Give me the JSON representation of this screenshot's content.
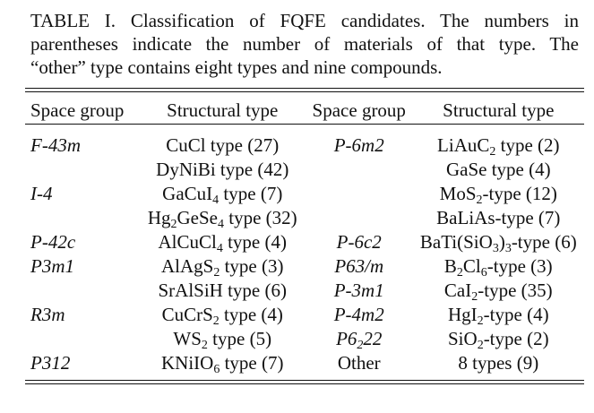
{
  "caption": {
    "line1": "TABLE I.   Classification of FQFE candidates. The numbers in",
    "line2": "parentheses indicate the number of materials of that type. The",
    "line3": "“other” type contains eight types and nine compounds."
  },
  "table": {
    "headers": [
      "Space group",
      "Structural type",
      "Space group",
      "Structural type"
    ],
    "rows": [
      [
        "F-43m",
        "CuCl type (27)",
        "P-6m2",
        "LiAuC₂ type (2)"
      ],
      [
        "",
        "DyNiBi type (42)",
        "",
        "GaSe type (4)"
      ],
      [
        "I-4",
        "GaCuI₄ type (7)",
        "",
        "MoS₂-type (12)"
      ],
      [
        "",
        "Hg₂GeSe₄ type (32)",
        "",
        "BaLiAs-type (7)"
      ],
      [
        "P-42c",
        "AlCuCl₄ type (4)",
        "P-6c2",
        "BaTi(SiO₃)₃-type (6)"
      ],
      [
        "P3m1",
        "AlAgS₂ type (3)",
        "P63/m",
        "B₂Cl₆-type (3)"
      ],
      [
        "",
        "SrAlSiH type (6)",
        "P-3m1",
        "CaI₂-type (35)"
      ],
      [
        "R3m",
        "CuCrS₂ type (4)",
        "P-4m2",
        "HgI₂-type (4)"
      ],
      [
        "",
        "WS₂ type (5)",
        "P6₂22",
        "SiO₂-type (2)"
      ],
      [
        "P312",
        "KNiIO₆ type (7)",
        "Other",
        "8 types (9)"
      ]
    ]
  }
}
